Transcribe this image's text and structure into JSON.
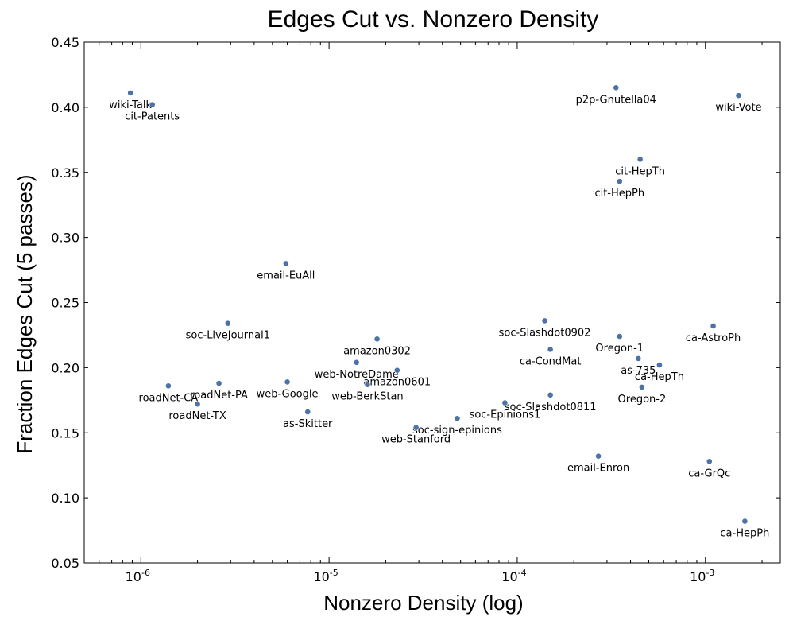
{
  "chart_data": {
    "type": "scatter",
    "title": "Edges Cut vs. Nonzero Density",
    "xlabel": "Nonzero Density (log)",
    "ylabel": "Fraction Edges Cut (5 passes)",
    "xscale": "log",
    "xlim": [
      5e-07,
      0.0025
    ],
    "ylim": [
      0.05,
      0.45
    ],
    "grid": false,
    "marker_color": "#4c72a6",
    "x_ticks": [
      {
        "value": 1e-06,
        "label": "10",
        "exp": "-6"
      },
      {
        "value": 1e-05,
        "label": "10",
        "exp": "-5"
      },
      {
        "value": 0.0001,
        "label": "10",
        "exp": "-4"
      },
      {
        "value": 0.001,
        "label": "10",
        "exp": "-3"
      }
    ],
    "y_ticks": [
      "0.05",
      "0.10",
      "0.15",
      "0.20",
      "0.25",
      "0.30",
      "0.35",
      "0.40",
      "0.45"
    ],
    "points": [
      {
        "label": "wiki-Talk",
        "x": 8.8e-07,
        "y": 0.411
      },
      {
        "label": "cit-Patents",
        "x": 1.15e-06,
        "y": 0.402
      },
      {
        "label": "p2p-Gnutella04",
        "x": 0.000335,
        "y": 0.415
      },
      {
        "label": "wiki-Vote",
        "x": 0.0015,
        "y": 0.409
      },
      {
        "label": "cit-HepTh",
        "x": 0.00045,
        "y": 0.36
      },
      {
        "label": "cit-HepPh",
        "x": 0.00035,
        "y": 0.343
      },
      {
        "label": "email-EuAll",
        "x": 5.9e-06,
        "y": 0.28
      },
      {
        "label": "soc-LiveJournal1",
        "x": 2.9e-06,
        "y": 0.234
      },
      {
        "label": "amazon0302",
        "x": 1.8e-05,
        "y": 0.222
      },
      {
        "label": "soc-Slashdot0902",
        "x": 0.00014,
        "y": 0.236
      },
      {
        "label": "Oregon-1",
        "x": 0.00035,
        "y": 0.224
      },
      {
        "label": "ca-AstroPh",
        "x": 0.0011,
        "y": 0.232
      },
      {
        "label": "ca-CondMat",
        "x": 0.00015,
        "y": 0.214
      },
      {
        "label": "web-NotreDame",
        "x": 1.4e-05,
        "y": 0.204
      },
      {
        "label": "amazon0601",
        "x": 2.3e-05,
        "y": 0.198
      },
      {
        "label": "as-735",
        "x": 0.00044,
        "y": 0.207
      },
      {
        "label": "ca-HepTh",
        "x": 0.00057,
        "y": 0.202
      },
      {
        "label": "roadNet-CA",
        "x": 1.4e-06,
        "y": 0.186
      },
      {
        "label": "roadNet-PA",
        "x": 2.6e-06,
        "y": 0.188
      },
      {
        "label": "web-Google",
        "x": 6e-06,
        "y": 0.189
      },
      {
        "label": "web-BerkStan",
        "x": 1.6e-05,
        "y": 0.187
      },
      {
        "label": "Oregon-2",
        "x": 0.00046,
        "y": 0.185
      },
      {
        "label": "roadNet-TX",
        "x": 2e-06,
        "y": 0.172
      },
      {
        "label": "soc-Slashdot0811",
        "x": 0.00015,
        "y": 0.179
      },
      {
        "label": "as-Skitter",
        "x": 7.7e-06,
        "y": 0.166
      },
      {
        "label": "soc-Epinions1",
        "x": 8.6e-05,
        "y": 0.173
      },
      {
        "label": "soc-sign-epinions",
        "x": 4.8e-05,
        "y": 0.161
      },
      {
        "label": "web-Stanford",
        "x": 2.9e-05,
        "y": 0.154
      },
      {
        "label": "email-Enron",
        "x": 0.00027,
        "y": 0.132
      },
      {
        "label": "ca-GrQc",
        "x": 0.00105,
        "y": 0.128
      },
      {
        "label": "ca-HepPh",
        "x": 0.00162,
        "y": 0.082
      }
    ]
  }
}
